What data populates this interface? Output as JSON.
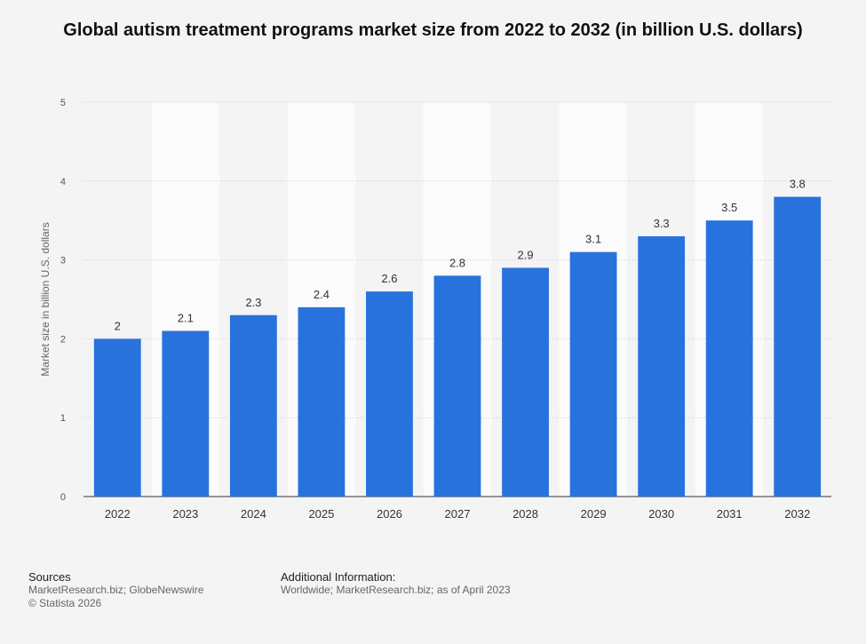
{
  "chart_data": {
    "type": "bar",
    "title": "Global autism treatment programs market size from 2022 to 2032 (in billion U.S. dollars)",
    "xlabel": "",
    "ylabel": "Market size in billion U.S. dollars",
    "categories": [
      "2022",
      "2023",
      "2024",
      "2025",
      "2026",
      "2027",
      "2028",
      "2029",
      "2030",
      "2031",
      "2032"
    ],
    "values": [
      2,
      2.1,
      2.3,
      2.4,
      2.6,
      2.8,
      2.9,
      3.1,
      3.3,
      3.5,
      3.8
    ],
    "ylim": [
      0,
      5
    ],
    "yticks": [
      0,
      1,
      2,
      3,
      4,
      5
    ],
    "grid": true,
    "bar_color": "#2872dd",
    "data_labels": true
  },
  "footer": {
    "sources_heading": "Sources",
    "sources_text": "MarketResearch.biz; GlobeNewswire",
    "copyright": "© Statista 2026",
    "additional_heading": "Additional Information:",
    "additional_text": "Worldwide; MarketResearch.biz; as of April 2023"
  }
}
